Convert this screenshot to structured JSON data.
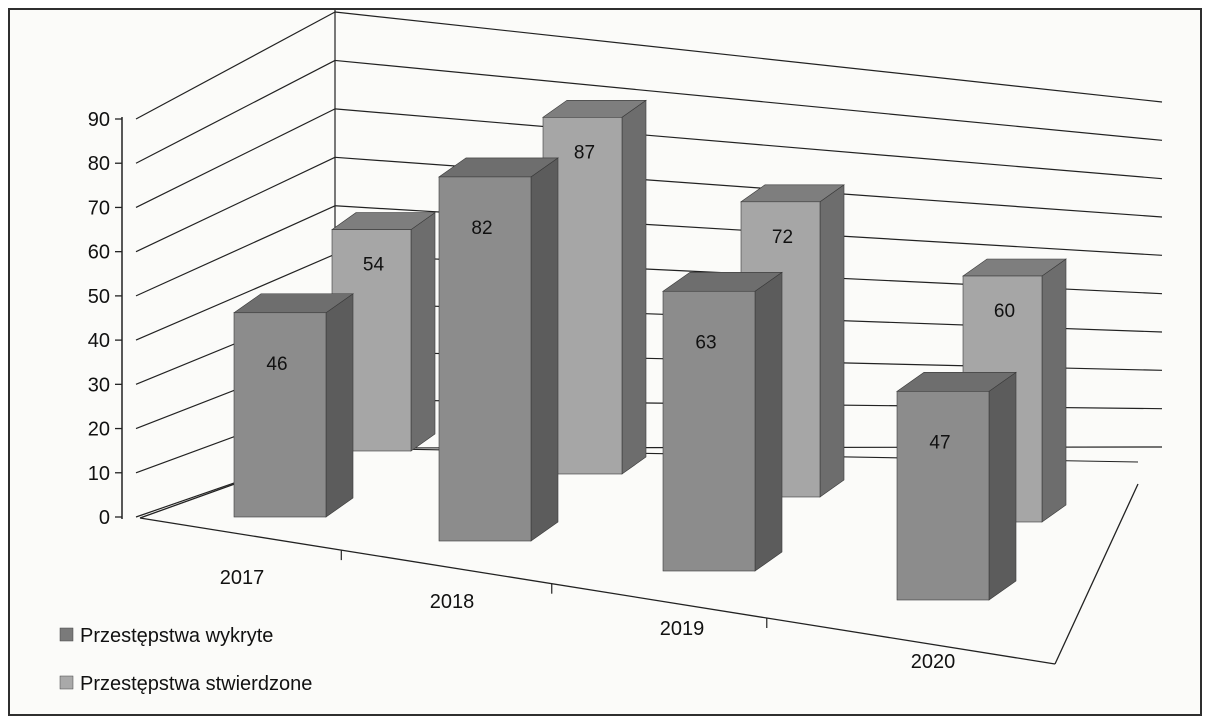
{
  "chart_data": {
    "type": "bar",
    "subtype": "3d-clustered-column",
    "categories": [
      "2017",
      "2018",
      "2019",
      "2020"
    ],
    "series": [
      {
        "name": "Przestępstwa wykryte",
        "values": [
          46,
          82,
          63,
          47
        ],
        "color": "#8f8f8f"
      },
      {
        "name": "Przestępstwa stwierdzone",
        "values": [
          54,
          87,
          72,
          60
        ],
        "color": "#a9a9a9"
      }
    ],
    "ylim": [
      0,
      90
    ],
    "yticks": [
      0,
      10,
      20,
      30,
      40,
      50,
      60,
      70,
      80,
      90
    ],
    "grid": true,
    "data_labels": true,
    "legend_position": "bottom-left"
  }
}
